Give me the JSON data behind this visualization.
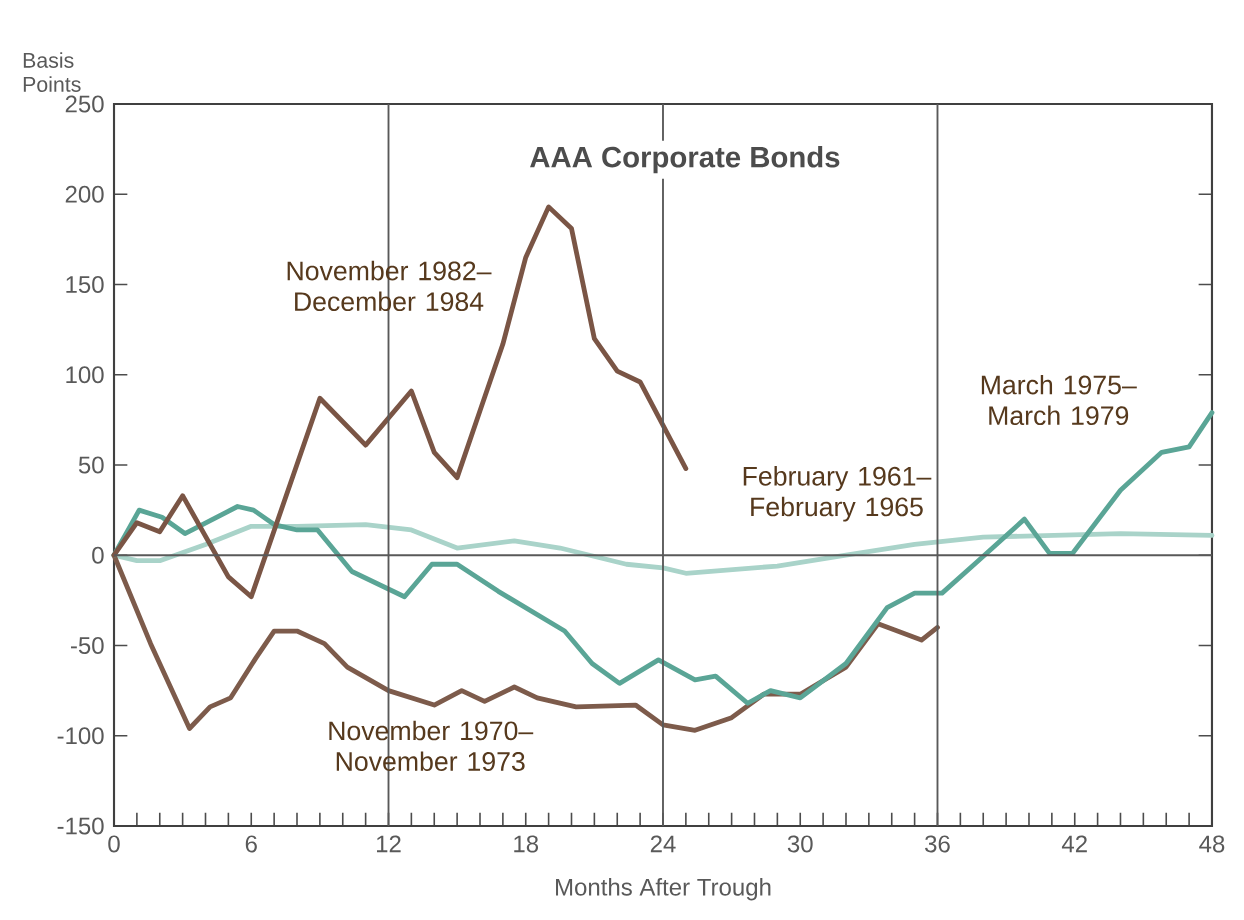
{
  "chart_data": {
    "type": "line",
    "title": "AAA Corporate Bonds",
    "xlabel": "Months After Trough",
    "ylabel": "Basis Points",
    "xlim": [
      0,
      48
    ],
    "ylim": [
      -150,
      250
    ],
    "xticks": [
      0,
      {
        "value": 1,
        "label": null
      },
      {
        "value": 2,
        "label": null
      },
      {
        "value": 3,
        "label": null
      },
      {
        "value": 4,
        "label": null
      },
      {
        "value": 5,
        "label": null
      },
      6,
      {
        "value": 7,
        "label": null
      },
      {
        "value": 8,
        "label": null
      },
      {
        "value": 9,
        "label": null
      },
      {
        "value": 10,
        "label": null
      },
      {
        "value": 11,
        "label": null
      },
      12,
      {
        "value": 13,
        "label": null
      },
      {
        "value": 14,
        "label": null
      },
      {
        "value": 15,
        "label": null
      },
      {
        "value": 16,
        "label": null
      },
      {
        "value": 17,
        "label": null
      },
      18,
      {
        "value": 19,
        "label": null
      },
      {
        "value": 20,
        "label": null
      },
      {
        "value": 21,
        "label": null
      },
      {
        "value": 22,
        "label": null
      },
      {
        "value": 23,
        "label": null
      },
      24,
      {
        "value": 25,
        "label": null
      },
      {
        "value": 26,
        "label": null
      },
      {
        "value": 27,
        "label": null
      },
      {
        "value": 28,
        "label": null
      },
      {
        "value": 29,
        "label": null
      },
      30,
      {
        "value": 31,
        "label": null
      },
      {
        "value": 32,
        "label": null
      },
      {
        "value": 33,
        "label": null
      },
      {
        "value": 34,
        "label": null
      },
      {
        "value": 35,
        "label": null
      },
      36,
      {
        "value": 37,
        "label": null
      },
      {
        "value": 38,
        "label": null
      },
      {
        "value": 39,
        "label": null
      },
      {
        "value": 40,
        "label": null
      },
      {
        "value": 41,
        "label": null
      },
      42,
      {
        "value": 43,
        "label": null
      },
      {
        "value": 44,
        "label": null
      },
      {
        "value": 45,
        "label": null
      },
      {
        "value": 46,
        "label": null
      },
      {
        "value": 47,
        "label": null
      },
      48
    ],
    "yticks": [
      -150,
      -100,
      -50,
      0,
      50,
      100,
      150,
      200,
      250
    ],
    "series": [
      {
        "name": "February 1961– February 1965",
        "color": "#a9d3c9",
        "x": [
          0,
          1,
          2,
          4,
          6,
          8,
          11,
          13,
          15,
          17.5,
          19.5,
          22.4,
          24,
          25,
          29,
          32,
          35,
          38,
          44,
          48
        ],
        "values": [
          0,
          -3,
          -3,
          6,
          16,
          16,
          17,
          14,
          4,
          8,
          4,
          -5,
          -7,
          -10,
          -6,
          0,
          6,
          10,
          12,
          11
        ]
      },
      {
        "name": "November 1970– November 1973",
        "color": "#7d5b4b",
        "x": [
          0,
          1.6,
          3.3,
          4.2,
          5.1,
          6.2,
          7,
          8,
          9.2,
          10.2,
          12,
          14,
          15.2,
          16.2,
          17.5,
          18.5,
          20.2,
          22.8,
          24,
          25.4,
          27,
          28.4,
          30,
          32,
          33.4,
          35.3,
          36
        ],
        "values": [
          0,
          -49,
          -96,
          -84,
          -79,
          -57,
          -42,
          -42,
          -49,
          -62,
          -75,
          -83,
          -75,
          -81,
          -73,
          -79,
          -84,
          -83,
          -94,
          -97,
          -90,
          -77,
          -77,
          -62,
          -38,
          -47,
          -40
        ]
      },
      {
        "name": "March 1975– March 1979",
        "color": "#5aa596",
        "x": [
          0,
          1.1,
          2.1,
          3.1,
          5.4,
          6.1,
          7,
          8,
          8.9,
          10.4,
          12.7,
          13.9,
          15,
          16.8,
          19.7,
          20.9,
          22.1,
          23.8,
          25.4,
          26.3,
          27.7,
          28.7,
          30,
          32,
          33.8,
          35,
          36.2,
          37.7,
          39.8,
          40.9,
          41.9,
          44,
          45.8,
          47,
          48
        ],
        "values": [
          0,
          25,
          21,
          12,
          27,
          25,
          17,
          14,
          14,
          -9,
          -23,
          -5,
          -5,
          -20,
          -42,
          -60,
          -71,
          -58,
          -69,
          -67,
          -82,
          -75,
          -79,
          -60,
          -29,
          -21,
          -21,
          -4,
          20,
          1,
          1,
          36,
          57,
          60,
          79
        ]
      },
      {
        "name": "November 1982– December 1984",
        "color": "#7a5545",
        "x": [
          0,
          1,
          2,
          3,
          5,
          6,
          9,
          11,
          13,
          14,
          15,
          16,
          17,
          18,
          19,
          20,
          21,
          22,
          23,
          25
        ],
        "values": [
          0,
          18,
          13,
          33,
          -12,
          -23,
          87,
          61,
          91,
          57,
          43,
          80,
          117,
          165,
          193,
          181,
          120,
          102,
          96,
          48
        ]
      }
    ],
    "ref_lines": [
      {
        "axis": "x",
        "value": 12
      },
      {
        "axis": "x",
        "value": 24
      },
      {
        "axis": "x",
        "value": 36
      },
      {
        "axis": "y",
        "value": 0
      }
    ]
  }
}
